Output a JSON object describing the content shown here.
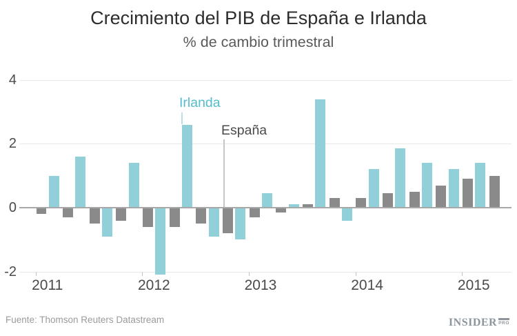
{
  "chart_data": {
    "type": "bar",
    "title": "Crecimiento del PIB de España e Irlanda",
    "subtitle": "% de cambio trimestral",
    "categories": [
      "2011 Q1",
      "2011 Q2",
      "2011 Q3",
      "2011 Q4",
      "2012 Q1",
      "2012 Q2",
      "2012 Q3",
      "2012 Q4",
      "2013 Q1",
      "2013 Q2",
      "2013 Q3",
      "2013 Q4",
      "2014 Q1",
      "2014 Q2",
      "2014 Q3",
      "2014 Q4",
      "2015 Q1",
      "2015 Q2"
    ],
    "x_tick_labels": [
      "2011",
      "2012",
      "2013",
      "2014",
      "2015"
    ],
    "y_ticks": [
      4,
      2,
      0,
      -2
    ],
    "ylim": [
      -2.4,
      4.2
    ],
    "grid": "horizontal",
    "legend_position": "inline-callout",
    "series": [
      {
        "name": "España",
        "color": "#8a8a8a",
        "values": [
          -0.2,
          -0.3,
          -0.5,
          -0.4,
          -0.6,
          -0.6,
          -0.5,
          -0.8,
          -0.3,
          -0.15,
          0.1,
          0.3,
          0.3,
          0.45,
          0.5,
          0.7,
          0.9,
          1.0
        ]
      },
      {
        "name": "Irlanda",
        "color": "#91d0d8",
        "values": [
          1.0,
          1.6,
          -0.9,
          1.4,
          -2.1,
          2.6,
          -0.9,
          -1.0,
          0.45,
          0.1,
          3.4,
          -0.4,
          1.2,
          1.85,
          1.4,
          1.2,
          1.4,
          null
        ]
      }
    ]
  },
  "legend": {
    "irlanda": "Irlanda",
    "espana": "España"
  },
  "footer": {
    "source": "Fuente: Thomson Reuters Datastream",
    "logo_main": "INSIDER",
    "logo_sub": "PRO"
  }
}
